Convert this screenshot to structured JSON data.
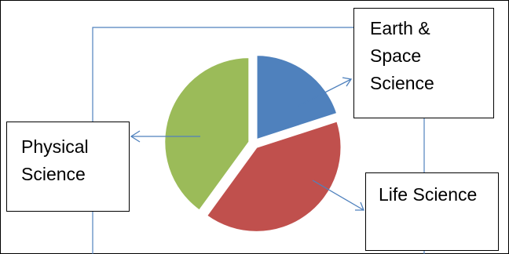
{
  "chart_data": {
    "type": "pie",
    "slices": [
      {
        "label": "Earth & Space Science",
        "value": 20,
        "color": "#4f81bd"
      },
      {
        "label": "Life Science",
        "value": 40,
        "color": "#c0504d"
      },
      {
        "label": "Physical Science",
        "value": 40,
        "color": "#9bbb59"
      }
    ],
    "exploded": true
  },
  "labels": {
    "earth": [
      "Earth &",
      "Space",
      "Science"
    ],
    "physical": [
      "Physical",
      "Science"
    ],
    "life": [
      "Life Science"
    ]
  },
  "colors": {
    "connector": "#4f81bd",
    "border": "#000000"
  }
}
